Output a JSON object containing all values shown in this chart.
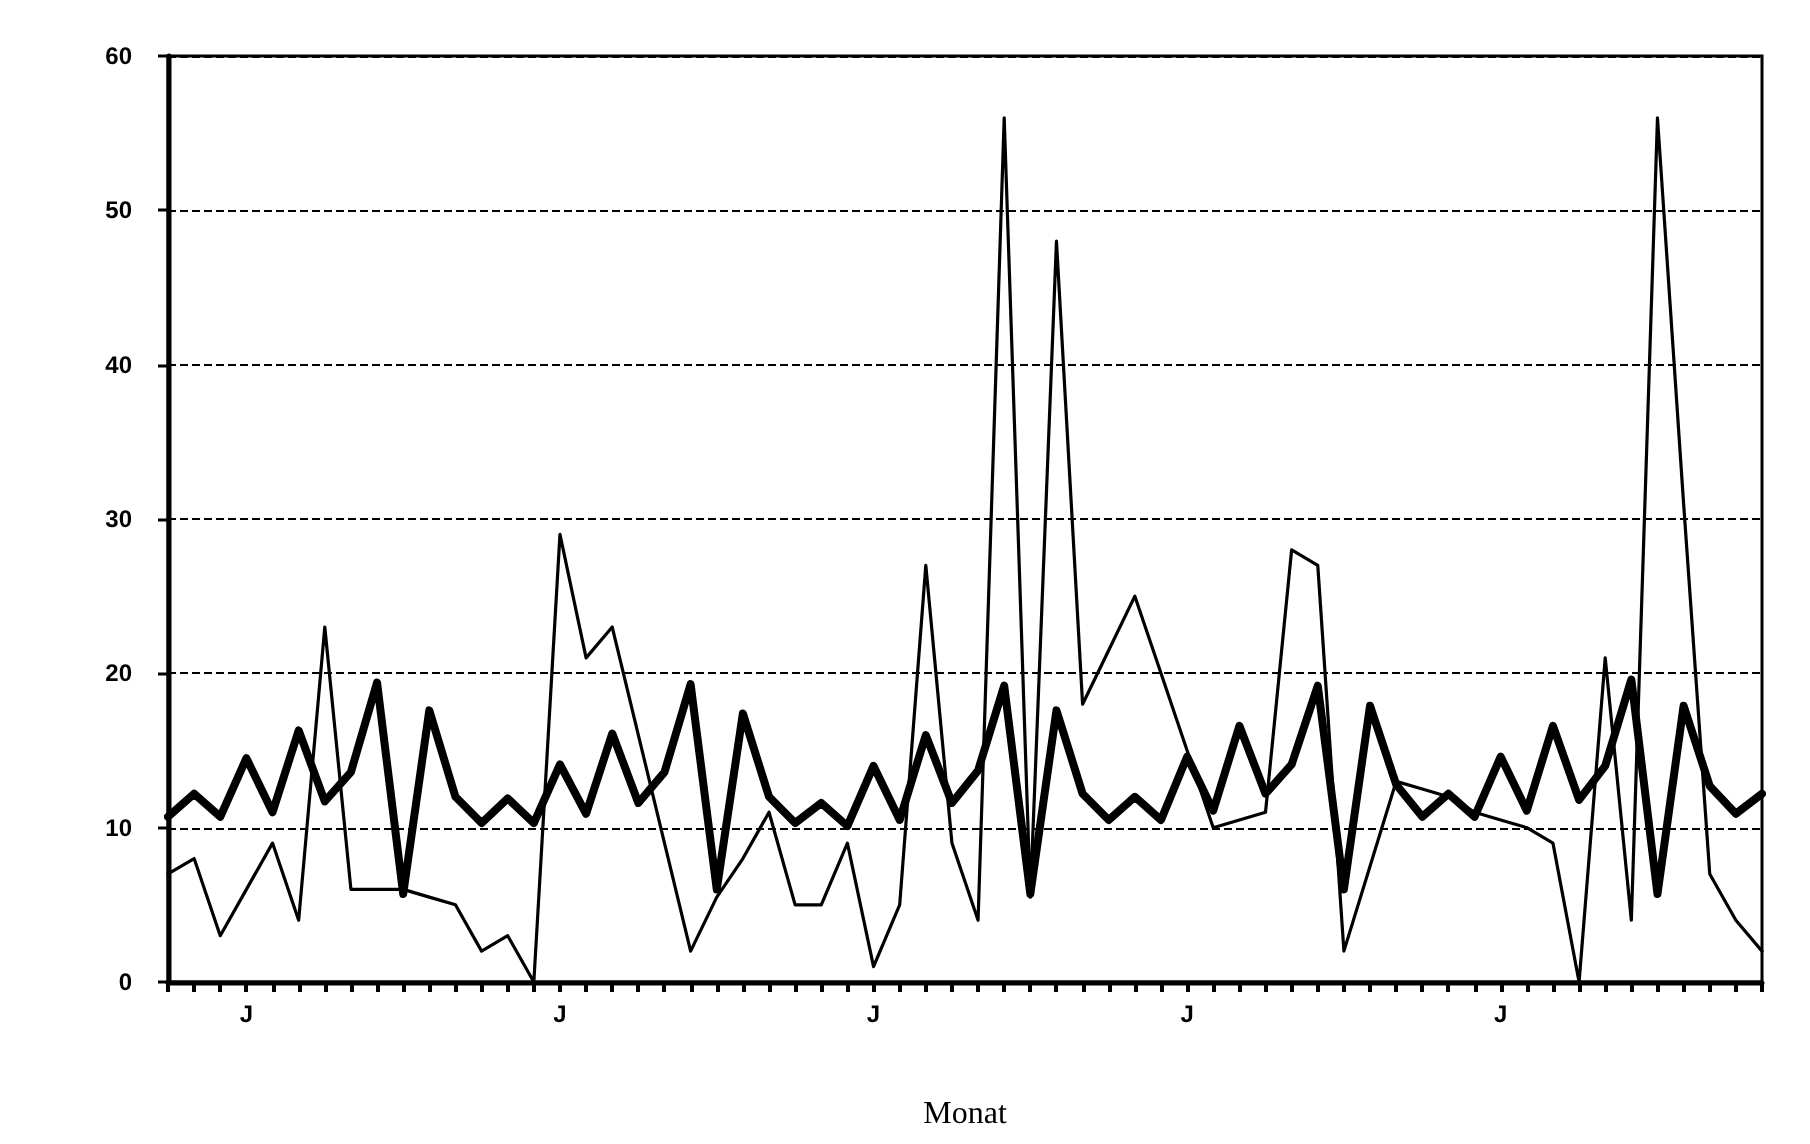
{
  "chart_data": {
    "type": "line",
    "xlabel": "Monat",
    "categories": [
      null,
      null,
      null,
      "J",
      null,
      null,
      null,
      null,
      null,
      null,
      null,
      null,
      null,
      null,
      null,
      "J",
      null,
      null,
      null,
      null,
      null,
      null,
      null,
      null,
      null,
      null,
      null,
      "J",
      null,
      null,
      null,
      null,
      null,
      null,
      null,
      null,
      null,
      null,
      null,
      "J",
      null,
      null,
      null,
      null,
      null,
      null,
      null,
      null,
      null,
      null,
      null,
      "J",
      null,
      null,
      null,
      null,
      null,
      null,
      null,
      null,
      null,
      null
    ],
    "series": [
      {
        "color": "#000000",
        "values": [
          7,
          8,
          3,
          6,
          9,
          4,
          23,
          6,
          6,
          6,
          5.5,
          5,
          2,
          3,
          0,
          29,
          21,
          23,
          16,
          9,
          2,
          5.5,
          8,
          11,
          5,
          5,
          9,
          1,
          5,
          27,
          9,
          4,
          56,
          5.5,
          48,
          18,
          21.5,
          25,
          20,
          15,
          10,
          10.5,
          11,
          28,
          27,
          2,
          7.5,
          13,
          12.5,
          12,
          11,
          10.5,
          10,
          9,
          0,
          21,
          4,
          56,
          31,
          7,
          4,
          2
        ]
      },
      {
        "color": "#000000",
        "values": [
          10.7,
          12.2,
          10.7,
          14.5,
          11,
          16.3,
          11.7,
          13.6,
          19.4,
          5.7,
          17.6,
          12,
          10.3,
          11.9,
          10.3,
          14.1,
          10.9,
          16.1,
          11.6,
          13.6,
          19.3,
          6,
          17.4,
          12,
          10.3,
          11.6,
          10.1,
          14,
          10.5,
          16,
          11.6,
          13.7,
          19.2,
          5.7,
          17.6,
          12.2,
          10.5,
          12,
          10.5,
          14.6,
          11.1,
          16.6,
          12.2,
          14.1,
          19.2,
          6,
          17.9,
          12.8,
          10.7,
          12.2,
          10.7,
          14.6,
          11.1,
          16.6,
          11.8,
          14,
          19.6,
          5.7,
          17.9,
          12.7,
          10.9,
          12.2
        ]
      }
    ],
    "ylim": [
      0,
      60
    ],
    "yticks": [
      0,
      10,
      20,
      30,
      40,
      50,
      60
    ],
    "grid": "y",
    "marker": "none",
    "line_style": "solid"
  }
}
